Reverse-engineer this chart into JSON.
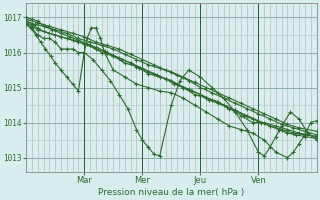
{
  "bg_color": "#d8eeee",
  "plot_bg_color": "#e8e8e8",
  "grid_v_color": "#c8b8b8",
  "grid_h_color": "#b8c8c8",
  "day_sep_color": "#446644",
  "line_color": "#2d6a2d",
  "marker_color": "#2d6a2d",
  "xlabel": "Pression niveau de la mer( hPa )",
  "yticks": [
    1013,
    1014,
    1015,
    1016,
    1017
  ],
  "xlim": [
    0,
    5
  ],
  "ylim": [
    1012.6,
    1017.4
  ],
  "day_positions": [
    1,
    2,
    3,
    4
  ],
  "day_labels": [
    "Mar",
    "Mer",
    "Jeu",
    "Ven"
  ],
  "series": [
    [
      0.0,
      1016.8,
      0.1,
      1016.7,
      0.2,
      1016.5,
      0.3,
      1016.4,
      0.4,
      1016.4,
      0.5,
      1016.3,
      0.6,
      1016.1,
      0.7,
      1016.1,
      0.8,
      1016.1,
      0.9,
      1016.0,
      1.0,
      1016.0,
      1.15,
      1015.8,
      1.3,
      1015.5,
      1.45,
      1015.2,
      1.6,
      1014.8,
      1.75,
      1014.4,
      1.9,
      1013.8,
      2.0,
      1013.5,
      2.1,
      1013.3,
      2.2,
      1013.1,
      2.3,
      1013.05,
      2.5,
      1014.5,
      2.65,
      1015.2,
      2.8,
      1015.5,
      3.0,
      1015.3,
      3.2,
      1015.0,
      3.4,
      1014.7,
      3.6,
      1014.3,
      3.8,
      1013.8,
      4.0,
      1013.15,
      4.1,
      1013.05,
      4.2,
      1013.3,
      4.3,
      1013.6,
      4.4,
      1013.9,
      4.55,
      1014.3,
      4.7,
      1014.1,
      4.85,
      1013.7,
      5.0,
      1013.5
    ],
    [
      0.0,
      1016.9,
      0.1,
      1016.8,
      0.2,
      1016.7,
      0.3,
      1016.6,
      0.5,
      1016.5,
      0.7,
      1016.4,
      0.9,
      1016.3,
      1.1,
      1016.2,
      1.3,
      1016.0,
      1.5,
      1015.9,
      1.7,
      1015.7,
      1.9,
      1015.6,
      2.1,
      1015.4,
      2.3,
      1015.3,
      2.5,
      1015.2,
      2.7,
      1015.0,
      2.9,
      1014.8,
      3.1,
      1014.7,
      3.3,
      1014.6,
      3.5,
      1014.4,
      3.7,
      1014.2,
      3.9,
      1014.0,
      4.1,
      1014.0,
      4.3,
      1013.9,
      4.5,
      1013.8,
      4.7,
      1013.7,
      5.0,
      1013.6
    ],
    [
      0.0,
      1016.85,
      0.1,
      1016.75,
      0.2,
      1016.65,
      0.4,
      1016.55,
      0.6,
      1016.45,
      0.8,
      1016.35,
      1.0,
      1016.25,
      1.2,
      1016.1,
      1.4,
      1016.0,
      1.6,
      1015.85,
      1.8,
      1015.7,
      2.0,
      1015.55,
      2.2,
      1015.4,
      2.4,
      1015.25,
      2.6,
      1015.1,
      2.8,
      1014.95,
      3.0,
      1014.8,
      3.2,
      1014.65,
      3.4,
      1014.5,
      3.6,
      1014.35,
      3.8,
      1014.2,
      4.0,
      1014.05,
      4.2,
      1013.9,
      4.4,
      1013.8,
      4.6,
      1013.7,
      4.8,
      1013.65,
      5.0,
      1013.6
    ],
    [
      0.0,
      1016.9,
      0.15,
      1016.8,
      0.3,
      1016.75,
      0.45,
      1016.65,
      0.6,
      1016.55,
      0.75,
      1016.45,
      0.9,
      1016.35,
      1.05,
      1016.25,
      1.2,
      1016.15,
      1.35,
      1016.05,
      1.5,
      1015.9,
      1.65,
      1015.8,
      1.8,
      1015.7,
      1.95,
      1015.55,
      2.1,
      1015.45,
      2.25,
      1015.35,
      2.4,
      1015.25,
      2.55,
      1015.1,
      2.7,
      1015.0,
      2.85,
      1014.9,
      3.0,
      1014.8,
      3.15,
      1014.65,
      3.3,
      1014.55,
      3.45,
      1014.45,
      3.6,
      1014.35,
      3.75,
      1014.2,
      3.9,
      1014.1,
      4.05,
      1014.0,
      4.2,
      1013.9,
      4.35,
      1013.8,
      4.5,
      1013.7,
      4.65,
      1013.65,
      4.8,
      1013.6,
      5.0,
      1013.55
    ],
    [
      0.0,
      1016.95,
      0.2,
      1016.85,
      0.4,
      1016.75,
      0.6,
      1016.65,
      0.8,
      1016.55,
      1.0,
      1016.45,
      1.2,
      1016.3,
      1.4,
      1016.2,
      1.6,
      1016.1,
      1.8,
      1015.95,
      2.0,
      1015.8,
      2.2,
      1015.65,
      2.4,
      1015.5,
      2.6,
      1015.35,
      2.8,
      1015.2,
      3.0,
      1015.0,
      3.2,
      1014.85,
      3.4,
      1014.7,
      3.6,
      1014.55,
      3.8,
      1014.4,
      4.0,
      1014.25,
      4.2,
      1014.1,
      4.4,
      1013.95,
      4.6,
      1013.85,
      4.8,
      1013.75,
      5.0,
      1013.65
    ],
    [
      0.0,
      1017.0,
      0.1,
      1016.95,
      0.2,
      1016.9,
      0.3,
      1016.75,
      0.5,
      1016.65,
      0.7,
      1016.55,
      0.9,
      1016.4,
      1.1,
      1016.3,
      1.3,
      1016.2,
      1.5,
      1016.1,
      1.7,
      1015.95,
      1.9,
      1015.8,
      2.1,
      1015.65,
      2.3,
      1015.55,
      2.5,
      1015.45,
      2.7,
      1015.3,
      2.9,
      1015.15,
      3.1,
      1015.0,
      3.3,
      1014.85,
      3.5,
      1014.7,
      3.7,
      1014.55,
      3.9,
      1014.4,
      4.1,
      1014.25,
      4.3,
      1014.1,
      4.5,
      1013.95,
      4.7,
      1013.85,
      5.0,
      1013.75
    ],
    [
      0.0,
      1016.8,
      0.08,
      1016.7,
      0.17,
      1016.5,
      0.25,
      1016.3,
      0.33,
      1016.1,
      0.42,
      1015.9,
      0.5,
      1015.7,
      0.6,
      1015.5,
      0.7,
      1015.3,
      0.8,
      1015.1,
      0.9,
      1014.9,
      1.0,
      1016.0,
      1.05,
      1016.4,
      1.12,
      1016.7,
      1.2,
      1016.7,
      1.28,
      1016.4,
      1.35,
      1016.0,
      1.5,
      1015.5,
      1.7,
      1015.3,
      1.9,
      1015.1,
      2.1,
      1015.0,
      2.3,
      1014.9,
      2.5,
      1014.85,
      2.7,
      1014.7,
      2.9,
      1014.5,
      3.1,
      1014.3,
      3.3,
      1014.1,
      3.5,
      1013.9,
      3.7,
      1013.8,
      3.9,
      1013.7,
      4.1,
      1013.5,
      4.3,
      1013.15,
      4.5,
      1013.0,
      4.6,
      1013.15,
      4.7,
      1013.4,
      4.8,
      1013.65,
      4.9,
      1014.0,
      5.0,
      1014.05
    ]
  ]
}
